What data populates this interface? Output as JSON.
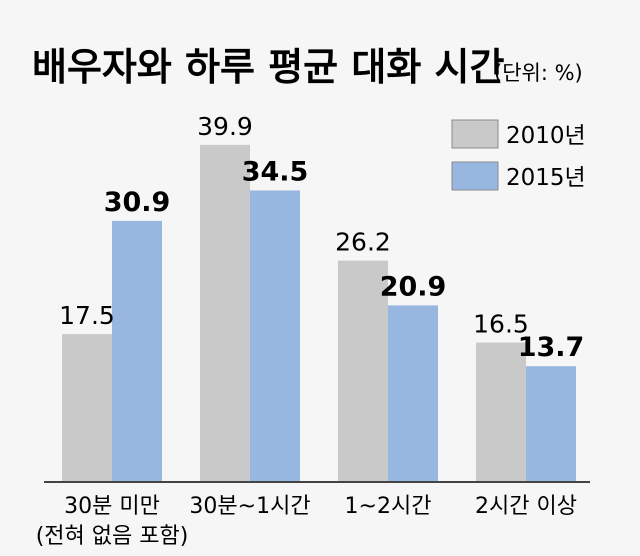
{
  "chart_data": {
    "type": "bar",
    "title": "배우자와 하루 평균 대화 시간",
    "unit": "(단위: %)",
    "categories": [
      {
        "label": "30분 미만",
        "sublabel": "(전혀 없음 포함)"
      },
      {
        "label": "30분~1시간",
        "sublabel": ""
      },
      {
        "label": "1~2시간",
        "sublabel": ""
      },
      {
        "label": "2시간 이상",
        "sublabel": ""
      }
    ],
    "series": [
      {
        "name": "2010년",
        "color": "#c9c9c9",
        "values": [
          17.5,
          39.9,
          26.2,
          16.5
        ],
        "labels": [
          "17.5",
          "39.9",
          "26.2",
          "16.5"
        ]
      },
      {
        "name": "2015년",
        "color": "#97b6e0",
        "values": [
          30.9,
          34.5,
          20.9,
          13.7
        ],
        "labels": [
          "30.9",
          "34.5",
          "20.9",
          "13.7"
        ]
      }
    ],
    "ylim": [
      0,
      40
    ],
    "grid": false,
    "legend_position": "top-right"
  }
}
